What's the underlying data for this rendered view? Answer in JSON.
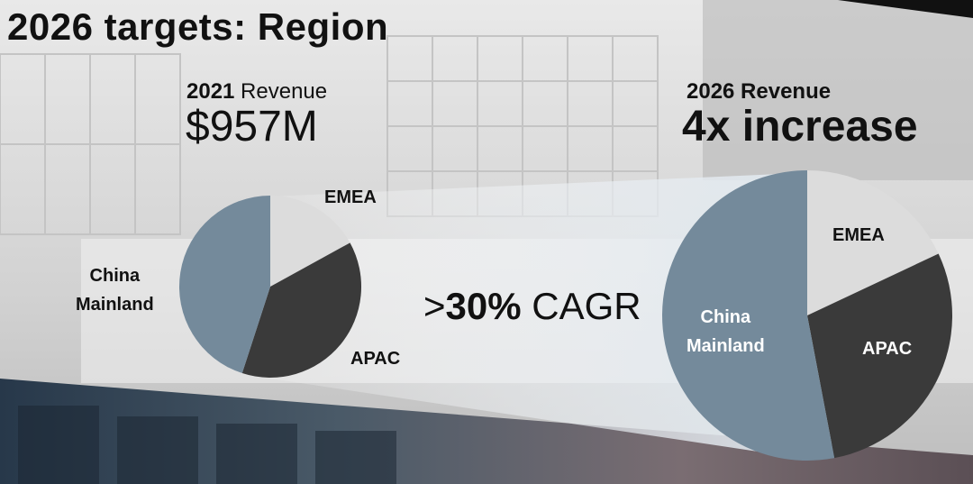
{
  "slide": {
    "title": "2026 targets: Region",
    "left_year": "2021",
    "left_subtitle_rest": " Revenue",
    "left_value": "$957M",
    "right_subtitle": "2026 Revenue",
    "right_value": "4x increase",
    "cagr_prefix": ">",
    "cagr_number": "30%",
    "cagr_suffix": " CAGR"
  },
  "chart_data": [
    {
      "type": "pie",
      "title": "2021 Revenue",
      "categories": [
        "EMEA",
        "APAC",
        "China Mainland"
      ],
      "values": [
        17,
        38,
        45
      ],
      "colors": [
        "#dcdcdc",
        "#3a3a3a",
        "#748a9b"
      ]
    },
    {
      "type": "pie",
      "title": "2026 Revenue",
      "categories": [
        "EMEA",
        "APAC",
        "China Mainland"
      ],
      "values": [
        18,
        29,
        53
      ],
      "colors": [
        "#dcdcdc",
        "#3a3a3a",
        "#748a9b"
      ]
    }
  ],
  "labels": {
    "left": {
      "emea": "EMEA",
      "china": "China\nMainland",
      "apac": "APAC"
    },
    "right": {
      "emea": "EMEA",
      "china": "China\nMainland",
      "apac": "APAC"
    }
  }
}
